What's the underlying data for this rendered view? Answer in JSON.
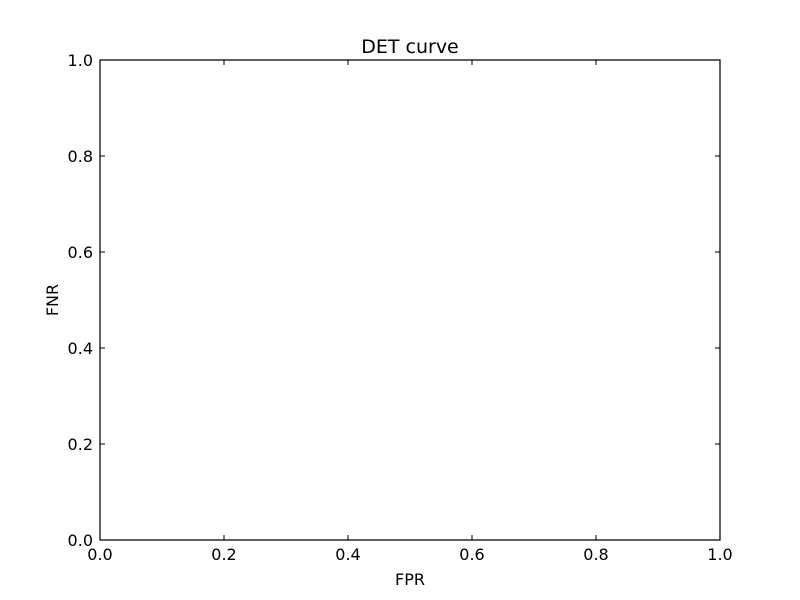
{
  "chart_data": {
    "type": "line",
    "title": "DET curve",
    "xlabel": "FPR",
    "ylabel": "FNR",
    "xlim": [
      0.0,
      1.0
    ],
    "ylim": [
      0.0,
      1.0
    ],
    "x_ticks": [
      0.0,
      0.2,
      0.4,
      0.6,
      0.8,
      1.0
    ],
    "y_ticks": [
      0.0,
      0.2,
      0.4,
      0.6,
      0.8,
      1.0
    ],
    "x_tick_labels": [
      "0.0",
      "0.2",
      "0.4",
      "0.6",
      "0.8",
      "1.0"
    ],
    "y_tick_labels": [
      "0.0",
      "0.2",
      "0.4",
      "0.6",
      "0.8",
      "1.0"
    ],
    "series": [],
    "grid": false,
    "legend": "none"
  }
}
